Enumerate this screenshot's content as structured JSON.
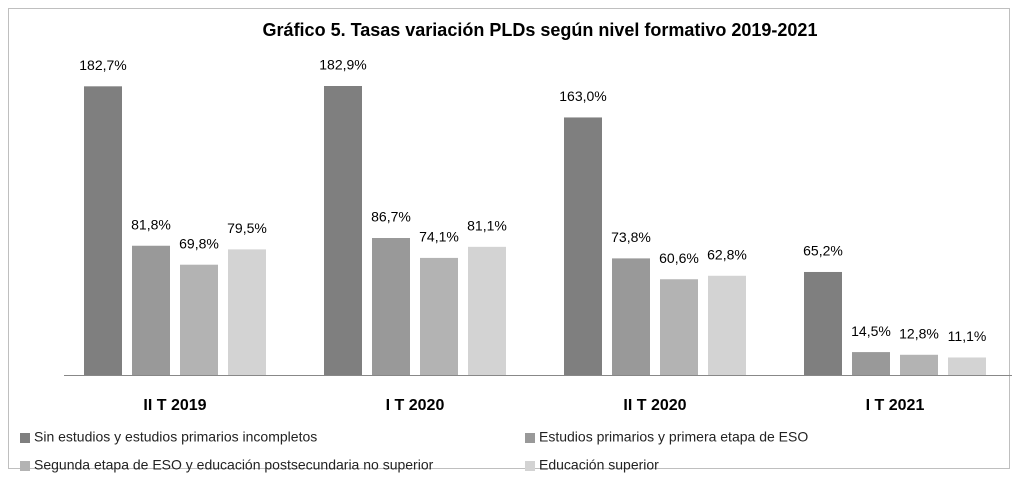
{
  "chart_data": {
    "type": "bar",
    "title": "Gráfico 5. Tasas variación PLDs según nivel formativo 2019-2021",
    "categories": [
      "II T 2019",
      "I T 2020",
      "II T 2020",
      "I T 2021"
    ],
    "series": [
      {
        "name": "Sin estudios y estudios primarios incompletos",
        "color": "#7f7f7f",
        "values": [
          182.7,
          182.9,
          163.0,
          65.2
        ],
        "value_labels": [
          "182,7%",
          "182,9%",
          "163,0%",
          "65,2%"
        ]
      },
      {
        "name": "Estudios primarios y primera etapa de ESO",
        "color": "#999999",
        "values": [
          81.8,
          86.7,
          73.8,
          14.5
        ],
        "value_labels": [
          "81,8%",
          "86,7%",
          "73,8%",
          "14,5%"
        ]
      },
      {
        "name": "Segunda etapa de ESO y educación postsecundaria no superior",
        "color": "#b3b3b3",
        "values": [
          69.8,
          74.1,
          60.6,
          12.8
        ],
        "value_labels": [
          "69,8%",
          "74,1%",
          "60,6%",
          "12,8%"
        ]
      },
      {
        "name": "Educación superior",
        "color": "#d3d3d3",
        "values": [
          79.5,
          81.1,
          62.8,
          11.1
        ],
        "value_labels": [
          "79,5%",
          "81,1%",
          "62,8%",
          "11,1%"
        ]
      }
    ]
  }
}
